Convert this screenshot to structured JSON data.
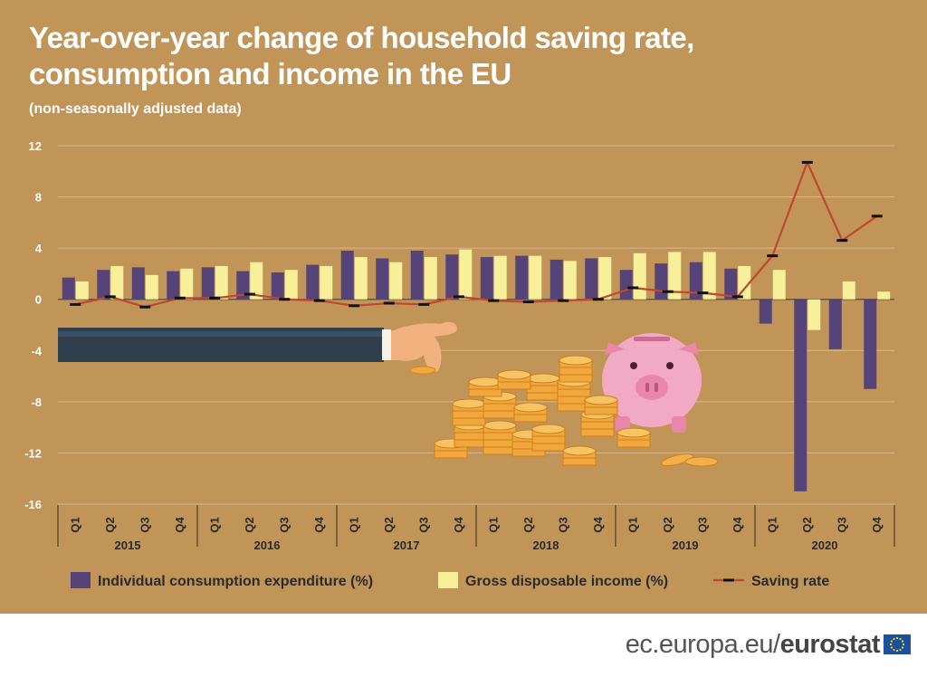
{
  "header": {
    "title_line1": "Year-over-year change of household saving rate,",
    "title_line2": "consumption and income in the EU",
    "subtitle": "(non-seasonally adjusted data)"
  },
  "footer": {
    "url_part": "ec.europa.eu/",
    "brand_part": "eurostat"
  },
  "colors": {
    "background": "#c19457",
    "consumption": "#564478",
    "income": "#f7ef9a",
    "saving": "#c0482f",
    "marker": "#111111",
    "axis_text": "#ffffff"
  },
  "chart_data": {
    "type": "bar",
    "title": "Year-over-year change of household saving rate, consumption and income in the EU",
    "subtitle": "(non-seasonally adjusted data)",
    "categories": [
      "Q1",
      "Q2",
      "Q3",
      "Q4",
      "Q1",
      "Q2",
      "Q3",
      "Q4",
      "Q1",
      "Q2",
      "Q3",
      "Q4",
      "Q1",
      "Q2",
      "Q3",
      "Q4",
      "Q1",
      "Q2",
      "Q3",
      "Q4",
      "Q1",
      "Q2",
      "Q3",
      "Q4"
    ],
    "years": [
      "2015",
      "2016",
      "2017",
      "2018",
      "2019",
      "2020"
    ],
    "y_ticks": [
      12,
      8,
      4,
      0,
      -4,
      -8,
      -12,
      -16
    ],
    "ylim": [
      -16,
      12
    ],
    "grid": true,
    "legend_position": "bottom",
    "series": [
      {
        "name": "Individual consumption expenditure (%)",
        "kind": "bar",
        "values": [
          1.7,
          2.3,
          2.5,
          2.2,
          2.5,
          2.2,
          2.1,
          2.7,
          3.8,
          3.2,
          3.8,
          3.5,
          3.3,
          3.4,
          3.1,
          3.2,
          2.3,
          2.8,
          2.9,
          2.4,
          -1.9,
          -15.0,
          -3.9,
          -7.0
        ]
      },
      {
        "name": "Gross disposable income (%)",
        "kind": "bar",
        "values": [
          1.4,
          2.6,
          1.9,
          2.4,
          2.6,
          2.9,
          2.3,
          2.6,
          3.3,
          2.9,
          3.3,
          3.9,
          3.4,
          3.4,
          3.0,
          3.3,
          3.6,
          3.7,
          3.7,
          2.6,
          2.3,
          -2.4,
          1.4,
          0.6
        ]
      },
      {
        "name": "Saving rate",
        "kind": "line",
        "values": [
          -0.4,
          0.2,
          -0.6,
          0.1,
          0.1,
          0.4,
          0.0,
          -0.1,
          -0.5,
          -0.3,
          -0.4,
          0.2,
          -0.1,
          -0.2,
          -0.1,
          0.0,
          0.9,
          0.6,
          0.5,
          0.2,
          3.4,
          10.7,
          4.6,
          6.5
        ]
      }
    ]
  }
}
